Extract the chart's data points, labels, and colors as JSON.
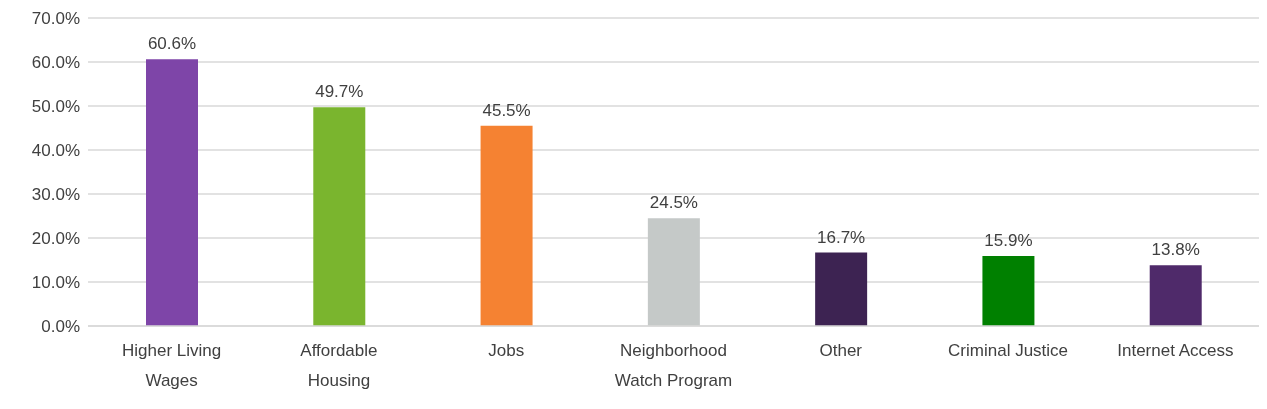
{
  "chart_data": {
    "type": "bar",
    "categories": [
      "Higher Living Wages",
      "Affordable Housing",
      "Jobs",
      "Neighborhood Watch Program",
      "Other",
      "Criminal Justice",
      "Internet Access"
    ],
    "values": [
      60.6,
      49.7,
      45.5,
      24.5,
      16.7,
      15.9,
      13.8
    ],
    "value_labels": [
      "60.6%",
      "49.7%",
      "45.5%",
      "24.5%",
      "16.7%",
      "15.9%",
      "13.8%"
    ],
    "colors": [
      "#7e45a8",
      "#7ab52e",
      "#f58232",
      "#c5c9c8",
      "#3d2352",
      "#008000",
      "#4f2a6a"
    ],
    "ylim": [
      0,
      70
    ],
    "yticks": [
      {
        "value": 0,
        "label": "0.0%"
      },
      {
        "value": 10,
        "label": "10.0%"
      },
      {
        "value": 20,
        "label": "20.0%"
      },
      {
        "value": 30,
        "label": "30.0%"
      },
      {
        "value": 40,
        "label": "40.0%"
      },
      {
        "value": 50,
        "label": "50.0%"
      },
      {
        "value": 60,
        "label": "60.0%"
      },
      {
        "value": 70,
        "label": "70.0%"
      }
    ],
    "grid": "y",
    "legend": false
  }
}
